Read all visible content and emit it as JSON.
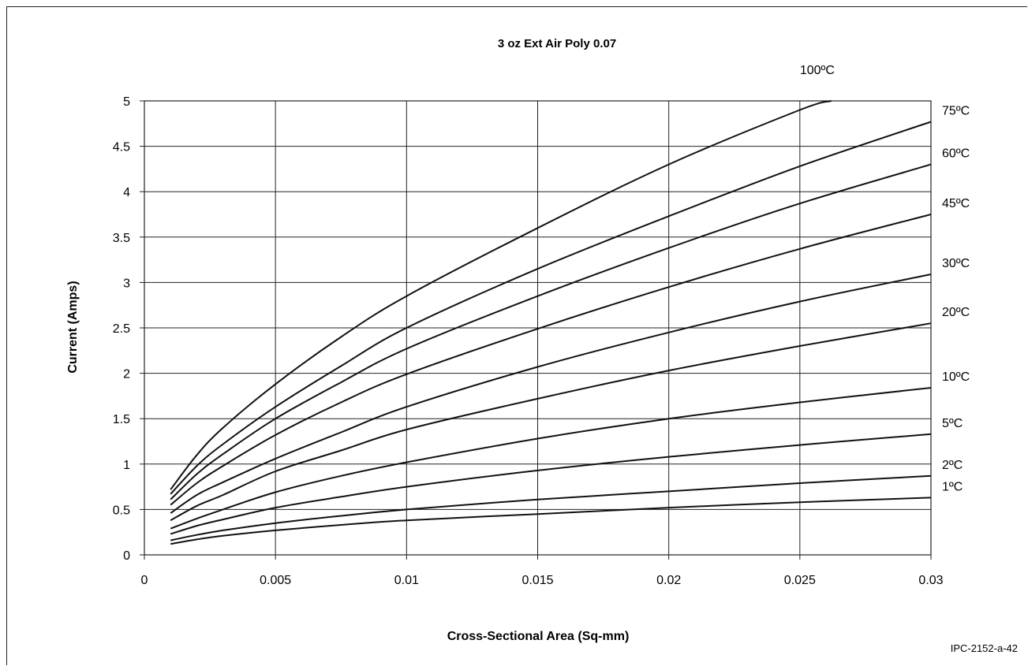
{
  "chart_data": {
    "type": "line",
    "title": "3 oz Ext Air Poly 0.07",
    "xlabel": "Cross-Sectional Area (Sq-mm)",
    "ylabel": "Current (Amps)",
    "xlim": [
      0,
      0.03
    ],
    "ylim": [
      0,
      5
    ],
    "x_ticks": [
      "0",
      "0.005",
      "0.01",
      "0.015",
      "0.02",
      "0.025",
      "0.03"
    ],
    "y_ticks": [
      "0",
      "0.5",
      "1",
      "1.5",
      "2",
      "2.5",
      "3",
      "3.5",
      "4",
      "4.5",
      "5"
    ],
    "grid": true,
    "legend": "right",
    "series": [
      {
        "name": "100ºC",
        "x": [
          0.001,
          0.002,
          0.003,
          0.005,
          0.0075,
          0.01,
          0.015,
          0.02,
          0.025,
          0.0262
        ],
        "y": [
          0.72,
          1.1,
          1.4,
          1.88,
          2.4,
          2.85,
          3.6,
          4.3,
          4.9,
          5.0
        ]
      },
      {
        "name": "75ºC",
        "x": [
          0.001,
          0.002,
          0.003,
          0.005,
          0.0075,
          0.01,
          0.015,
          0.02,
          0.025,
          0.03
        ],
        "y": [
          0.67,
          0.98,
          1.22,
          1.63,
          2.08,
          2.5,
          3.15,
          3.73,
          4.28,
          4.77
        ]
      },
      {
        "name": "60ºC",
        "x": [
          0.001,
          0.002,
          0.003,
          0.005,
          0.0075,
          0.01,
          0.015,
          0.02,
          0.025,
          0.03
        ],
        "y": [
          0.61,
          0.89,
          1.11,
          1.5,
          1.9,
          2.27,
          2.85,
          3.38,
          3.87,
          4.3
        ]
      },
      {
        "name": "45ºC",
        "x": [
          0.001,
          0.002,
          0.003,
          0.005,
          0.0075,
          0.01,
          0.015,
          0.02,
          0.025,
          0.03
        ],
        "y": [
          0.55,
          0.79,
          0.98,
          1.32,
          1.68,
          1.99,
          2.49,
          2.95,
          3.37,
          3.75
        ]
      },
      {
        "name": "30ºC",
        "x": [
          0.001,
          0.002,
          0.003,
          0.005,
          0.0075,
          0.01,
          0.015,
          0.02,
          0.025,
          0.03
        ],
        "y": [
          0.46,
          0.66,
          0.8,
          1.06,
          1.35,
          1.63,
          2.07,
          2.45,
          2.79,
          3.09
        ]
      },
      {
        "name": "20ºC",
        "x": [
          0.001,
          0.002,
          0.003,
          0.005,
          0.0075,
          0.01,
          0.015,
          0.02,
          0.025,
          0.03
        ],
        "y": [
          0.38,
          0.54,
          0.66,
          0.92,
          1.15,
          1.38,
          1.72,
          2.03,
          2.3,
          2.55
        ]
      },
      {
        "name": "10ºC",
        "x": [
          0.001,
          0.002,
          0.003,
          0.005,
          0.0075,
          0.01,
          0.015,
          0.02,
          0.025,
          0.03
        ],
        "y": [
          0.29,
          0.4,
          0.5,
          0.69,
          0.87,
          1.02,
          1.28,
          1.5,
          1.68,
          1.84
        ]
      },
      {
        "name": "5ºC",
        "x": [
          0.001,
          0.002,
          0.003,
          0.005,
          0.0075,
          0.01,
          0.015,
          0.02,
          0.025,
          0.03
        ],
        "y": [
          0.23,
          0.32,
          0.39,
          0.52,
          0.64,
          0.75,
          0.93,
          1.08,
          1.21,
          1.33
        ]
      },
      {
        "name": "2ºC",
        "x": [
          0.001,
          0.002,
          0.003,
          0.005,
          0.0075,
          0.01,
          0.015,
          0.02,
          0.025,
          0.03
        ],
        "y": [
          0.16,
          0.22,
          0.27,
          0.35,
          0.43,
          0.5,
          0.61,
          0.7,
          0.79,
          0.87
        ]
      },
      {
        "name": "1ºC",
        "x": [
          0.001,
          0.002,
          0.003,
          0.005,
          0.0075,
          0.01,
          0.015,
          0.02,
          0.025,
          0.03
        ],
        "y": [
          0.12,
          0.17,
          0.21,
          0.27,
          0.33,
          0.38,
          0.45,
          0.52,
          0.58,
          0.63
        ]
      }
    ]
  },
  "figure_id": "IPC-2152-a-42"
}
